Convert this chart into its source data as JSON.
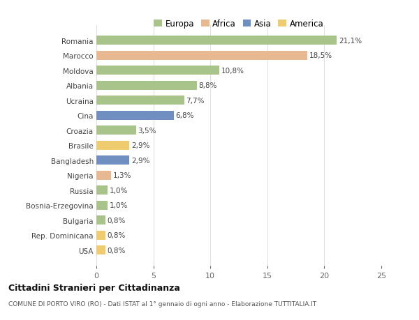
{
  "countries": [
    "Romania",
    "Marocco",
    "Moldova",
    "Albania",
    "Ucraina",
    "Cina",
    "Croazia",
    "Brasile",
    "Bangladesh",
    "Nigeria",
    "Russia",
    "Bosnia-Erzegovina",
    "Bulgaria",
    "Rep. Dominicana",
    "USA"
  ],
  "values": [
    21.1,
    18.5,
    10.8,
    8.8,
    7.7,
    6.8,
    3.5,
    2.9,
    2.9,
    1.3,
    1.0,
    1.0,
    0.8,
    0.8,
    0.8
  ],
  "labels": [
    "21,1%",
    "18,5%",
    "10,8%",
    "8,8%",
    "7,7%",
    "6,8%",
    "3,5%",
    "2,9%",
    "2,9%",
    "1,3%",
    "1,0%",
    "1,0%",
    "0,8%",
    "0,8%",
    "0,8%"
  ],
  "continent": [
    "Europa",
    "Africa",
    "Europa",
    "Europa",
    "Europa",
    "Asia",
    "Europa",
    "America",
    "Asia",
    "Africa",
    "Europa",
    "Europa",
    "Europa",
    "America",
    "America"
  ],
  "colors": {
    "Europa": "#a8c48a",
    "Africa": "#e8b890",
    "Asia": "#6e8fbf",
    "America": "#f0cc70"
  },
  "xlim": [
    0,
    25
  ],
  "xticks": [
    0,
    5,
    10,
    15,
    20,
    25
  ],
  "title": "Cittadini Stranieri per Cittadinanza",
  "subtitle": "COMUNE DI PORTO VIRO (RO) - Dati ISTAT al 1° gennaio di ogni anno - Elaborazione TUTTITALIA.IT",
  "bg_color": "#ffffff",
  "grid_color": "#e0e0e0",
  "legend_entries": [
    "Europa",
    "Africa",
    "Asia",
    "America"
  ]
}
